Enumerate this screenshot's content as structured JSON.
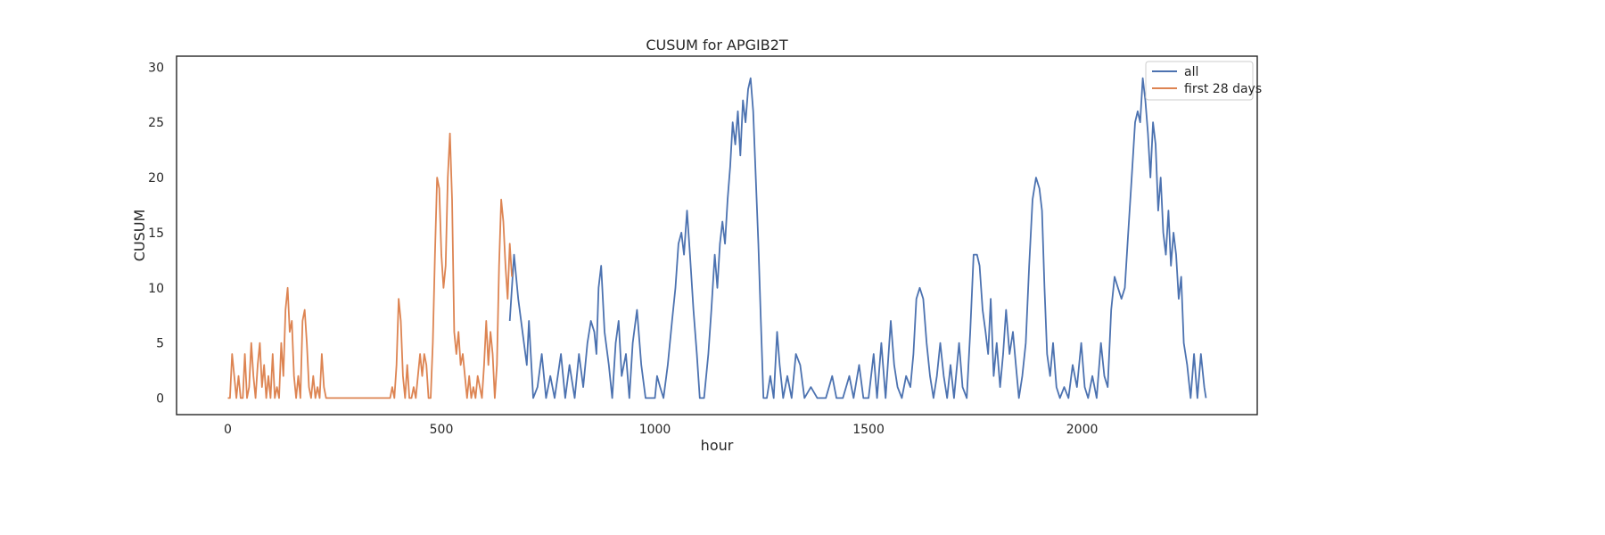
{
  "chart_data": {
    "type": "line",
    "title": "CUSUM for APGIB2T",
    "xlabel": "hour",
    "ylabel": "CUSUM",
    "xlim": [
      -120,
      2410
    ],
    "ylim": [
      -1.5,
      31
    ],
    "xticks": [
      0,
      500,
      1000,
      1500,
      2000
    ],
    "yticks": [
      0,
      5,
      10,
      15,
      20,
      25,
      30
    ],
    "grid": false,
    "legend_position": "top-right",
    "series": [
      {
        "name": "all",
        "color": "#4c72b0",
        "points": [
          [
            660,
            7
          ],
          [
            670,
            13
          ],
          [
            680,
            9
          ],
          [
            690,
            6
          ],
          [
            700,
            3
          ],
          [
            705,
            7
          ],
          [
            715,
            0
          ],
          [
            725,
            1
          ],
          [
            735,
            4
          ],
          [
            745,
            0
          ],
          [
            755,
            2
          ],
          [
            765,
            0
          ],
          [
            780,
            4
          ],
          [
            790,
            0
          ],
          [
            800,
            3
          ],
          [
            812,
            0
          ],
          [
            822,
            4
          ],
          [
            832,
            1
          ],
          [
            842,
            5
          ],
          [
            850,
            7
          ],
          [
            858,
            6
          ],
          [
            863,
            4
          ],
          [
            868,
            10
          ],
          [
            874,
            12
          ],
          [
            882,
            6
          ],
          [
            892,
            3
          ],
          [
            900,
            0
          ],
          [
            908,
            5
          ],
          [
            915,
            7
          ],
          [
            922,
            2
          ],
          [
            932,
            4
          ],
          [
            940,
            0
          ],
          [
            948,
            5
          ],
          [
            958,
            8
          ],
          [
            968,
            3
          ],
          [
            978,
            0
          ],
          [
            990,
            0
          ],
          [
            1000,
            0
          ],
          [
            1005,
            2
          ],
          [
            1012,
            1
          ],
          [
            1020,
            0
          ],
          [
            1030,
            3
          ],
          [
            1040,
            7
          ],
          [
            1048,
            10
          ],
          [
            1055,
            14
          ],
          [
            1062,
            15
          ],
          [
            1068,
            13
          ],
          [
            1075,
            17
          ],
          [
            1082,
            13
          ],
          [
            1090,
            8
          ],
          [
            1098,
            4
          ],
          [
            1105,
            0
          ],
          [
            1115,
            0
          ],
          [
            1125,
            4
          ],
          [
            1132,
            8
          ],
          [
            1140,
            13
          ],
          [
            1146,
            10
          ],
          [
            1152,
            14
          ],
          [
            1158,
            16
          ],
          [
            1164,
            14
          ],
          [
            1170,
            18
          ],
          [
            1176,
            21
          ],
          [
            1182,
            25
          ],
          [
            1188,
            23
          ],
          [
            1194,
            26
          ],
          [
            1200,
            22
          ],
          [
            1206,
            27
          ],
          [
            1212,
            25
          ],
          [
            1218,
            28
          ],
          [
            1224,
            29
          ],
          [
            1230,
            26
          ],
          [
            1236,
            20
          ],
          [
            1242,
            14
          ],
          [
            1248,
            7
          ],
          [
            1254,
            0
          ],
          [
            1262,
            0
          ],
          [
            1270,
            2
          ],
          [
            1278,
            0
          ],
          [
            1286,
            6
          ],
          [
            1292,
            3
          ],
          [
            1300,
            0
          ],
          [
            1310,
            2
          ],
          [
            1320,
            0
          ],
          [
            1330,
            4
          ],
          [
            1340,
            3
          ],
          [
            1350,
            0
          ],
          [
            1365,
            1
          ],
          [
            1380,
            0
          ],
          [
            1400,
            0
          ],
          [
            1415,
            2
          ],
          [
            1425,
            0
          ],
          [
            1440,
            0
          ],
          [
            1455,
            2
          ],
          [
            1465,
            0
          ],
          [
            1478,
            3
          ],
          [
            1488,
            0
          ],
          [
            1500,
            0
          ],
          [
            1512,
            4
          ],
          [
            1520,
            0
          ],
          [
            1530,
            5
          ],
          [
            1540,
            0
          ],
          [
            1552,
            7
          ],
          [
            1560,
            3
          ],
          [
            1568,
            1
          ],
          [
            1578,
            0
          ],
          [
            1588,
            2
          ],
          [
            1598,
            1
          ],
          [
            1605,
            4
          ],
          [
            1612,
            9
          ],
          [
            1620,
            10
          ],
          [
            1628,
            9
          ],
          [
            1636,
            5
          ],
          [
            1644,
            2
          ],
          [
            1652,
            0
          ],
          [
            1660,
            2
          ],
          [
            1668,
            5
          ],
          [
            1676,
            2
          ],
          [
            1684,
            0
          ],
          [
            1692,
            3
          ],
          [
            1700,
            0
          ],
          [
            1712,
            5
          ],
          [
            1720,
            1
          ],
          [
            1730,
            0
          ],
          [
            1738,
            6
          ],
          [
            1746,
            13
          ],
          [
            1754,
            13
          ],
          [
            1760,
            12
          ],
          [
            1767,
            8
          ],
          [
            1774,
            6
          ],
          [
            1780,
            4
          ],
          [
            1786,
            9
          ],
          [
            1793,
            2
          ],
          [
            1800,
            5
          ],
          [
            1808,
            1
          ],
          [
            1815,
            4
          ],
          [
            1822,
            8
          ],
          [
            1830,
            4
          ],
          [
            1838,
            6
          ],
          [
            1845,
            3
          ],
          [
            1852,
            0
          ],
          [
            1860,
            2
          ],
          [
            1868,
            5
          ],
          [
            1876,
            12
          ],
          [
            1884,
            18
          ],
          [
            1892,
            20
          ],
          [
            1900,
            19
          ],
          [
            1906,
            17
          ],
          [
            1912,
            10
          ],
          [
            1918,
            4
          ],
          [
            1925,
            2
          ],
          [
            1932,
            5
          ],
          [
            1940,
            1
          ],
          [
            1948,
            0
          ],
          [
            1958,
            1
          ],
          [
            1968,
            0
          ],
          [
            1978,
            3
          ],
          [
            1988,
            1
          ],
          [
            1998,
            5
          ],
          [
            2006,
            1
          ],
          [
            2014,
            0
          ],
          [
            2024,
            2
          ],
          [
            2034,
            0
          ],
          [
            2044,
            5
          ],
          [
            2052,
            2
          ],
          [
            2060,
            1
          ],
          [
            2068,
            8
          ],
          [
            2076,
            11
          ],
          [
            2084,
            10
          ],
          [
            2092,
            9
          ],
          [
            2100,
            10
          ],
          [
            2108,
            15
          ],
          [
            2116,
            20
          ],
          [
            2124,
            25
          ],
          [
            2130,
            26
          ],
          [
            2136,
            25
          ],
          [
            2142,
            29
          ],
          [
            2148,
            27
          ],
          [
            2154,
            24
          ],
          [
            2160,
            20
          ],
          [
            2166,
            25
          ],
          [
            2172,
            23
          ],
          [
            2178,
            17
          ],
          [
            2184,
            20
          ],
          [
            2190,
            15
          ],
          [
            2196,
            13
          ],
          [
            2202,
            17
          ],
          [
            2208,
            12
          ],
          [
            2214,
            15
          ],
          [
            2220,
            13
          ],
          [
            2226,
            9
          ],
          [
            2232,
            11
          ],
          [
            2238,
            5
          ],
          [
            2246,
            3
          ],
          [
            2254,
            0
          ],
          [
            2262,
            4
          ],
          [
            2270,
            0
          ],
          [
            2278,
            4
          ],
          [
            2286,
            1
          ],
          [
            2290,
            0
          ]
        ]
      },
      {
        "name": "first 28 days",
        "color": "#dd8452",
        "points": [
          [
            0,
            0
          ],
          [
            5,
            0
          ],
          [
            10,
            4
          ],
          [
            15,
            2
          ],
          [
            20,
            0
          ],
          [
            25,
            2
          ],
          [
            30,
            0
          ],
          [
            35,
            0
          ],
          [
            40,
            4
          ],
          [
            45,
            0
          ],
          [
            50,
            1
          ],
          [
            55,
            5
          ],
          [
            60,
            2
          ],
          [
            65,
            0
          ],
          [
            70,
            3
          ],
          [
            75,
            5
          ],
          [
            80,
            1
          ],
          [
            85,
            3
          ],
          [
            90,
            0
          ],
          [
            95,
            2
          ],
          [
            100,
            0
          ],
          [
            105,
            4
          ],
          [
            110,
            0
          ],
          [
            115,
            1
          ],
          [
            120,
            0
          ],
          [
            125,
            5
          ],
          [
            130,
            2
          ],
          [
            135,
            8
          ],
          [
            140,
            10
          ],
          [
            145,
            6
          ],
          [
            150,
            7
          ],
          [
            155,
            2
          ],
          [
            160,
            0
          ],
          [
            165,
            2
          ],
          [
            170,
            0
          ],
          [
            175,
            7
          ],
          [
            180,
            8
          ],
          [
            185,
            5
          ],
          [
            190,
            1
          ],
          [
            195,
            0
          ],
          [
            200,
            2
          ],
          [
            205,
            0
          ],
          [
            210,
            1
          ],
          [
            215,
            0
          ],
          [
            220,
            4
          ],
          [
            225,
            1
          ],
          [
            230,
            0
          ],
          [
            240,
            0
          ],
          [
            260,
            0
          ],
          [
            300,
            0
          ],
          [
            340,
            0
          ],
          [
            380,
            0
          ],
          [
            385,
            1
          ],
          [
            390,
            0
          ],
          [
            395,
            3
          ],
          [
            400,
            9
          ],
          [
            405,
            7
          ],
          [
            410,
            2
          ],
          [
            415,
            0
          ],
          [
            420,
            3
          ],
          [
            425,
            0
          ],
          [
            430,
            0
          ],
          [
            435,
            1
          ],
          [
            440,
            0
          ],
          [
            445,
            2
          ],
          [
            450,
            4
          ],
          [
            455,
            2
          ],
          [
            460,
            4
          ],
          [
            465,
            3
          ],
          [
            470,
            0
          ],
          [
            475,
            0
          ],
          [
            480,
            5
          ],
          [
            485,
            13
          ],
          [
            490,
            20
          ],
          [
            495,
            19
          ],
          [
            500,
            13
          ],
          [
            505,
            10
          ],
          [
            510,
            12
          ],
          [
            515,
            20
          ],
          [
            520,
            24
          ],
          [
            525,
            18
          ],
          [
            530,
            6
          ],
          [
            535,
            4
          ],
          [
            540,
            6
          ],
          [
            545,
            3
          ],
          [
            550,
            4
          ],
          [
            555,
            2
          ],
          [
            560,
            0
          ],
          [
            565,
            2
          ],
          [
            570,
            0
          ],
          [
            575,
            1
          ],
          [
            580,
            0
          ],
          [
            585,
            2
          ],
          [
            590,
            1
          ],
          [
            595,
            0
          ],
          [
            600,
            3
          ],
          [
            605,
            7
          ],
          [
            610,
            3
          ],
          [
            615,
            6
          ],
          [
            620,
            4
          ],
          [
            625,
            0
          ],
          [
            630,
            3
          ],
          [
            635,
            12
          ],
          [
            640,
            18
          ],
          [
            645,
            16
          ],
          [
            650,
            12
          ],
          [
            655,
            9
          ],
          [
            660,
            14
          ],
          [
            665,
            11
          ]
        ]
      }
    ]
  }
}
